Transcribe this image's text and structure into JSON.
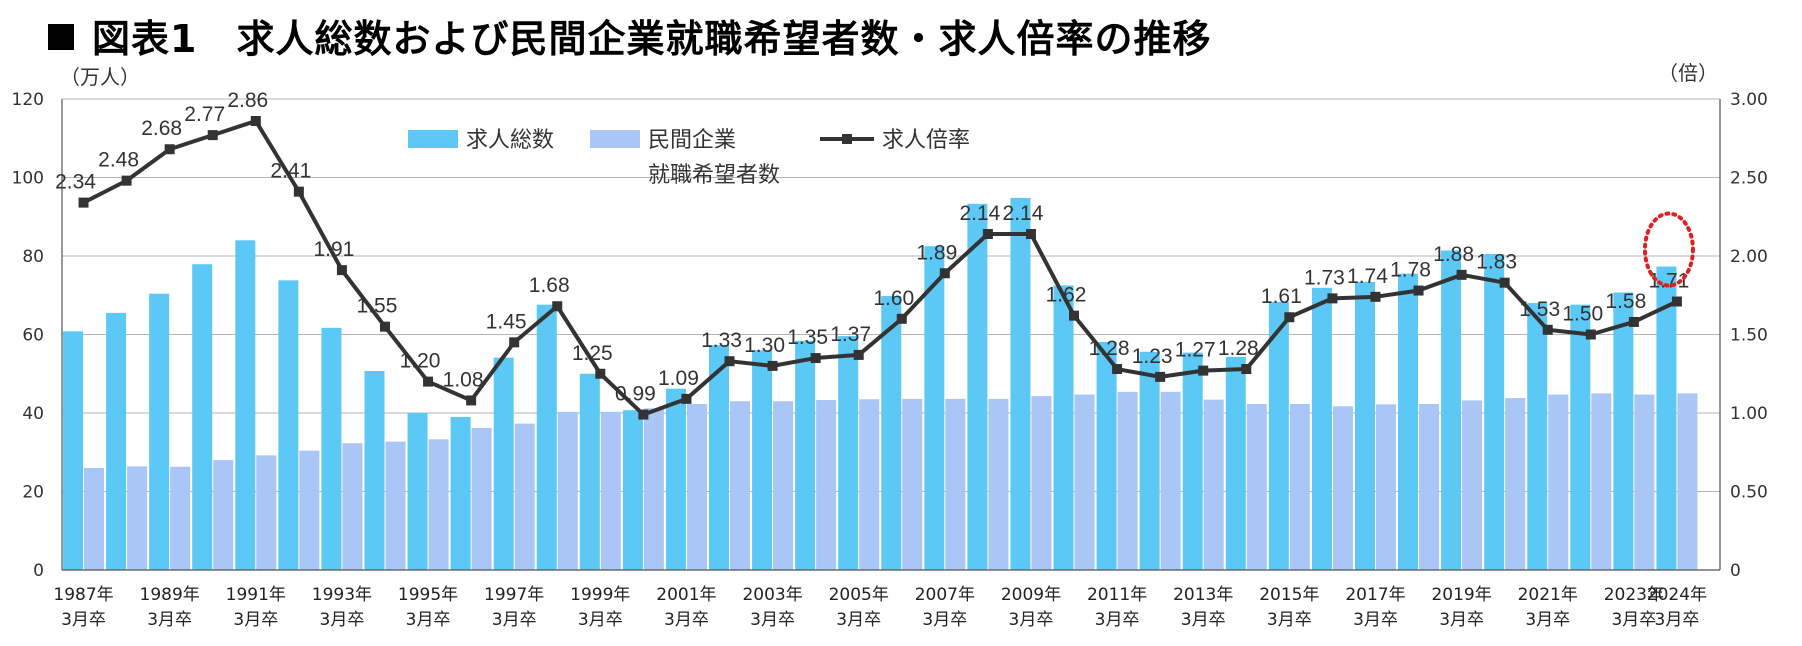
{
  "title": "図表1　求人総数および民間企業就職希望者数・求人倍率の推移",
  "chart_data": {
    "type": "bar+line",
    "left_axis_unit": "（万人）",
    "right_axis_unit": "（倍）",
    "y_left": {
      "min": 0,
      "max": 120,
      "ticks": [
        "0",
        "20",
        "40",
        "60",
        "80",
        "100",
        "120"
      ]
    },
    "y_right": {
      "min": 0,
      "max": 3,
      "ticks": [
        "0",
        "0.50",
        "1.00",
        "1.50",
        "2.00",
        "2.50",
        "3.00"
      ]
    },
    "categories": [
      "1987",
      "1988",
      "1989",
      "1990",
      "1991",
      "1992",
      "1993",
      "1994",
      "1995",
      "1996",
      "1997",
      "1998",
      "1999",
      "2000",
      "2001",
      "2002",
      "2003",
      "2004",
      "2005",
      "2006",
      "2007",
      "2008",
      "2009",
      "2010",
      "2011",
      "2012",
      "2013",
      "2014",
      "2015",
      "2016",
      "2017",
      "2018",
      "2019",
      "2020",
      "2021",
      "2022",
      "2023",
      "2024"
    ],
    "x_tick_labels": [
      {
        "index": 0,
        "line1": "1987年",
        "line2": "3月卒"
      },
      {
        "index": 2,
        "line1": "1989年",
        "line2": "3月卒"
      },
      {
        "index": 4,
        "line1": "1991年",
        "line2": "3月卒"
      },
      {
        "index": 6,
        "line1": "1993年",
        "line2": "3月卒"
      },
      {
        "index": 8,
        "line1": "1995年",
        "line2": "3月卒"
      },
      {
        "index": 10,
        "line1": "1997年",
        "line2": "3月卒"
      },
      {
        "index": 12,
        "line1": "1999年",
        "line2": "3月卒"
      },
      {
        "index": 14,
        "line1": "2001年",
        "line2": "3月卒"
      },
      {
        "index": 16,
        "line1": "2003年",
        "line2": "3月卒"
      },
      {
        "index": 18,
        "line1": "2005年",
        "line2": "3月卒"
      },
      {
        "index": 20,
        "line1": "2007年",
        "line2": "3月卒"
      },
      {
        "index": 22,
        "line1": "2009年",
        "line2": "3月卒"
      },
      {
        "index": 24,
        "line1": "2011年",
        "line2": "3月卒"
      },
      {
        "index": 26,
        "line1": "2013年",
        "line2": "3月卒"
      },
      {
        "index": 28,
        "line1": "2015年",
        "line2": "3月卒"
      },
      {
        "index": 30,
        "line1": "2017年",
        "line2": "3月卒"
      },
      {
        "index": 32,
        "line1": "2019年",
        "line2": "3月卒"
      },
      {
        "index": 34,
        "line1": "2021年",
        "line2": "3月卒"
      },
      {
        "index": 36,
        "line1": "2023年",
        "line2": "3月卒"
      },
      {
        "index": 37,
        "line1": "2024年",
        "line2": "3月卒"
      }
    ],
    "series": [
      {
        "name": "求人総数",
        "type": "bar",
        "color": "#5bc8f5",
        "values": [
          60.8,
          65.5,
          70.4,
          77.9,
          84.0,
          73.8,
          61.7,
          50.7,
          40.0,
          39.0,
          54.1,
          67.6,
          50.0,
          40.7,
          46.2,
          57.3,
          56.0,
          58.4,
          59.6,
          69.8,
          82.5,
          93.3,
          94.8,
          72.5,
          58.1,
          55.6,
          55.4,
          54.3,
          68.3,
          71.9,
          73.4,
          75.5,
          81.4,
          80.5,
          68.0,
          67.6,
          70.7,
          77.3
        ]
      },
      {
        "name": "民間企業就職希望者数",
        "legend_line1": "民間企業",
        "legend_line2": "就職希望者数",
        "type": "bar",
        "color": "#a9c6f7",
        "values": [
          26.0,
          26.4,
          26.3,
          28.0,
          29.2,
          30.4,
          32.3,
          32.7,
          33.3,
          36.2,
          37.3,
          40.3,
          40.3,
          41.2,
          42.3,
          43.0,
          43.0,
          43.3,
          43.5,
          43.6,
          43.6,
          43.6,
          44.3,
          44.7,
          45.4,
          45.4,
          43.4,
          42.3,
          42.3,
          41.7,
          42.2,
          42.3,
          43.2,
          43.8,
          44.7,
          45.0,
          44.7,
          45.0
        ]
      },
      {
        "name": "求人倍率",
        "type": "line",
        "color": "#333333",
        "values": [
          2.34,
          2.48,
          2.68,
          2.77,
          2.86,
          2.41,
          1.91,
          1.55,
          1.2,
          1.08,
          1.45,
          1.68,
          1.25,
          0.99,
          1.09,
          1.33,
          1.3,
          1.35,
          1.37,
          1.6,
          1.89,
          2.14,
          2.14,
          1.62,
          1.28,
          1.23,
          1.27,
          1.28,
          1.61,
          1.73,
          1.74,
          1.78,
          1.88,
          1.83,
          1.53,
          1.5,
          1.58,
          1.71
        ],
        "labels": [
          "2.34",
          "2.48",
          "2.68",
          "2.77",
          "2.86",
          "2.41",
          "1.91",
          "1.55",
          "1.20",
          "1.08",
          "1.45",
          "1.68",
          "1.25",
          "0.99",
          "1.09",
          "1.33",
          "1.30",
          "1.35",
          "1.37",
          "1.60",
          "1.89",
          "2.14",
          "2.14",
          "1.62",
          "1.28",
          "1.23",
          "1.27",
          "1.28",
          "1.61",
          "1.73",
          "1.74",
          "1.78",
          "1.88",
          "1.83",
          "1.53",
          "1.50",
          "1.58",
          "1.71"
        ]
      }
    ],
    "highlight": {
      "index": 37,
      "color": "#e02020",
      "style": "dotted-ellipse"
    },
    "gridlines": true,
    "legend_position": "top-center"
  }
}
